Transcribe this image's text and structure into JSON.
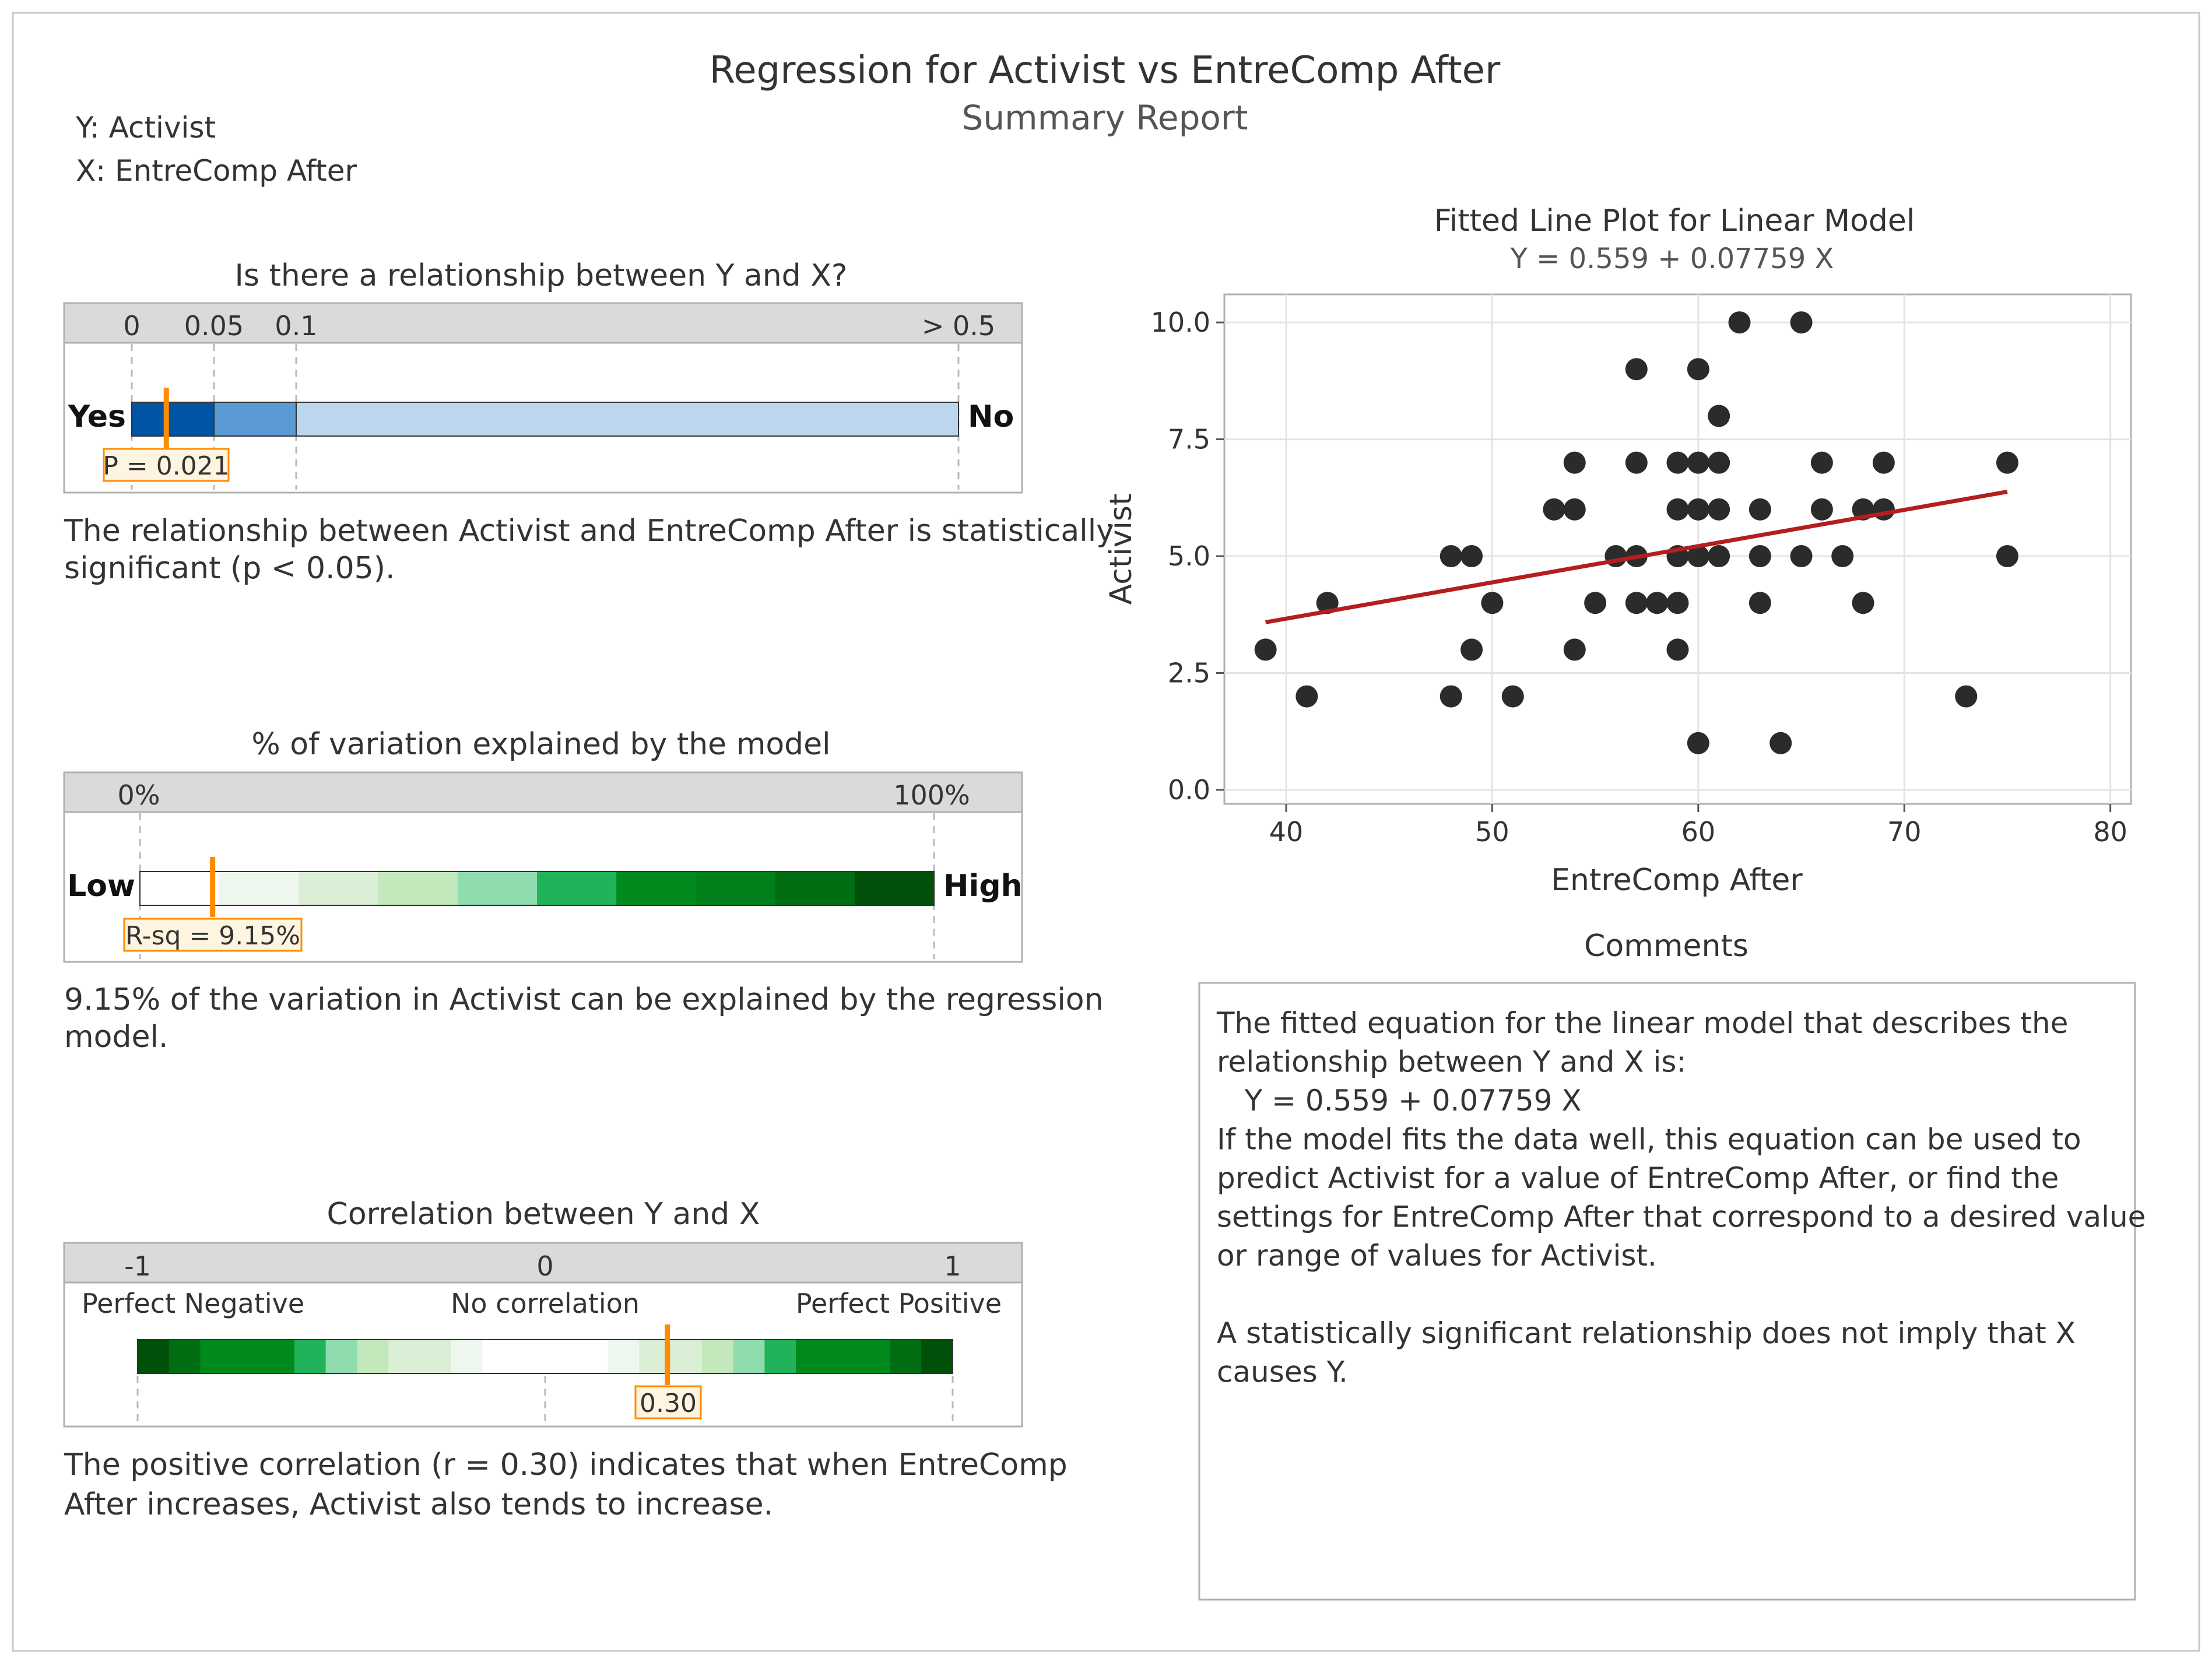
{
  "report": {
    "title": "Regression for Activist vs EntreComp After",
    "subtitle": "Summary Report",
    "y_var": "Y: Activist",
    "x_var": "X: EntreComp After"
  },
  "colors": {
    "frame": "#c8c8c8",
    "header_fill": "#dadada",
    "pvalue_dark": "#0054a6",
    "pvalue_mid": "#5b9bd5",
    "pvalue_light": "#bcd6ef",
    "marker": "#ff8c00",
    "marker_box": "#fff4e0",
    "point": "#2b2b2b",
    "fit_line": "#b41e1e",
    "grid": "#e4e4e4"
  },
  "pvalue_panel": {
    "heading": "Is there a relationship between Y and X?",
    "ticks": [
      {
        "label": "0",
        "value": 0
      },
      {
        "label": "0.05",
        "value": 0.05
      },
      {
        "label": "0.1",
        "value": 0.1
      },
      {
        "label": "> 0.5",
        "value": 0.5
      }
    ],
    "left_label": "Yes",
    "right_label": "No",
    "marker_label": "P = 0.021",
    "p_value": 0.021,
    "text": [
      "The relationship between Activist and EntreComp After is statistically",
      "significant (p < 0.05)."
    ]
  },
  "rsq_panel": {
    "heading": "% of variation explained by the model",
    "tick_left": "0%",
    "tick_right": "100%",
    "left_label": "Low",
    "right_label": "High",
    "marker_label": "R-sq = 9.15%",
    "r_sq_percent": 9.15,
    "segment_colors": [
      "#ffffff",
      "#eef7ee",
      "#dbeed6",
      "#c2e8bb",
      "#8fdcae",
      "#22b35a",
      "#008a1e",
      "#00801a",
      "#006d12",
      "#00500a"
    ],
    "text": [
      "9.15% of the variation in Activist can be explained by the regression",
      "model."
    ]
  },
  "corr_panel": {
    "heading": "Correlation between Y and X",
    "tick_labels": [
      "-1",
      "0",
      "1"
    ],
    "sub_labels": [
      "Perfect Negative",
      "No correlation",
      "Perfect Positive"
    ],
    "marker_label": "0.30",
    "r_value": 0.3,
    "segment_colors": [
      "#00500a",
      "#006d12",
      "#008a1e",
      "#008a1e",
      "#008a1e",
      "#22b35a",
      "#8fdcae",
      "#c2e8bb",
      "#dbeed6",
      "#dbeed6",
      "#eef7ee",
      "#ffffff",
      "#ffffff",
      "#ffffff",
      "#ffffff",
      "#eef7ee",
      "#dbeed6",
      "#dbeed6",
      "#c2e8bb",
      "#8fdcae",
      "#22b35a",
      "#008a1e",
      "#008a1e",
      "#008a1e",
      "#006d12",
      "#00500a"
    ],
    "text": [
      "The positive correlation (r = 0.30) indicates that when EntreComp",
      "After increases, Activist also tends to increase."
    ]
  },
  "chart_data": {
    "type": "scatter",
    "title": "Fitted Line Plot for Linear Model",
    "subtitle": "Y = 0.559 + 0.07759 X",
    "xlabel": "EntreComp After",
    "ylabel": "Activist",
    "xlim": [
      37,
      81
    ],
    "ylim": [
      -0.3,
      10.6
    ],
    "xticks": [
      40,
      50,
      60,
      70,
      80
    ],
    "yticks": [
      0,
      2.5,
      5,
      7.5,
      10
    ],
    "ytick_labels": [
      "0.0",
      "2.5",
      "5.0",
      "7.5",
      "10.0"
    ],
    "grid": true,
    "fit": {
      "intercept": 0.559,
      "slope": 0.07759,
      "x_range": [
        39,
        75
      ]
    },
    "points": [
      {
        "x": 39,
        "y": 3
      },
      {
        "x": 41,
        "y": 2
      },
      {
        "x": 42,
        "y": 4
      },
      {
        "x": 48,
        "y": 5
      },
      {
        "x": 48,
        "y": 2
      },
      {
        "x": 49,
        "y": 5
      },
      {
        "x": 49,
        "y": 3
      },
      {
        "x": 50,
        "y": 4
      },
      {
        "x": 51,
        "y": 2
      },
      {
        "x": 53,
        "y": 6
      },
      {
        "x": 54,
        "y": 6
      },
      {
        "x": 54,
        "y": 7
      },
      {
        "x": 54,
        "y": 3
      },
      {
        "x": 55,
        "y": 4
      },
      {
        "x": 56,
        "y": 5
      },
      {
        "x": 57,
        "y": 9
      },
      {
        "x": 57,
        "y": 7
      },
      {
        "x": 57,
        "y": 5
      },
      {
        "x": 57,
        "y": 4
      },
      {
        "x": 58,
        "y": 4
      },
      {
        "x": 59,
        "y": 7
      },
      {
        "x": 59,
        "y": 6
      },
      {
        "x": 59,
        "y": 5
      },
      {
        "x": 59,
        "y": 4
      },
      {
        "x": 59,
        "y": 3
      },
      {
        "x": 60,
        "y": 9
      },
      {
        "x": 60,
        "y": 7
      },
      {
        "x": 60,
        "y": 6
      },
      {
        "x": 60,
        "y": 5
      },
      {
        "x": 60,
        "y": 1
      },
      {
        "x": 61,
        "y": 8
      },
      {
        "x": 61,
        "y": 7
      },
      {
        "x": 61,
        "y": 6
      },
      {
        "x": 61,
        "y": 5
      },
      {
        "x": 62,
        "y": 10
      },
      {
        "x": 63,
        "y": 6
      },
      {
        "x": 63,
        "y": 5
      },
      {
        "x": 63,
        "y": 4
      },
      {
        "x": 64,
        "y": 1
      },
      {
        "x": 65,
        "y": 10
      },
      {
        "x": 65,
        "y": 5
      },
      {
        "x": 66,
        "y": 7
      },
      {
        "x": 66,
        "y": 6
      },
      {
        "x": 67,
        "y": 5
      },
      {
        "x": 68,
        "y": 6
      },
      {
        "x": 68,
        "y": 4
      },
      {
        "x": 69,
        "y": 7
      },
      {
        "x": 69,
        "y": 6
      },
      {
        "x": 73,
        "y": 2
      },
      {
        "x": 75,
        "y": 7
      },
      {
        "x": 75,
        "y": 5
      }
    ]
  },
  "comments": {
    "heading": "Comments",
    "lines": [
      "The fitted equation for the linear model that describes the",
      "relationship between Y and X is:",
      "   Y = 0.559 + 0.07759 X",
      "If the model fits the data well, this equation can be used to",
      "predict Activist for a value of EntreComp After, or find the",
      "settings for EntreComp After that correspond to a desired value",
      "or range of values for Activist.",
      "",
      "A statistically significant relationship does not imply that X",
      "causes Y."
    ]
  }
}
